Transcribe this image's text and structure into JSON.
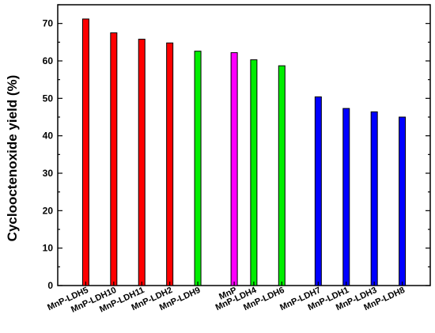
{
  "chart_data": {
    "type": "bar",
    "title": "",
    "xlabel": "",
    "ylabel": "Cyclooctenoxide yield (%)",
    "ylim": [
      0,
      75
    ],
    "yticks": [
      0,
      10,
      20,
      30,
      40,
      50,
      60,
      70
    ],
    "grid": false,
    "legend": "none",
    "categories": [
      "MnP-LDH5",
      "MnP-LDH10",
      "MnP-LDH11",
      "MnP-LDH2",
      "MnP-LDH9",
      "MnP",
      "MnP-LDH4",
      "MnP-LDH6",
      "MnP-LDH7",
      "MnP-LDH1",
      "MnP-LDH3",
      "MnP-LDH8"
    ],
    "values": [
      71.2,
      67.5,
      65.8,
      64.8,
      62.6,
      62.2,
      60.3,
      58.7,
      50.4,
      47.3,
      46.4,
      45.0
    ],
    "colors": [
      "#ff0000",
      "#ff0000",
      "#ff0000",
      "#ff0000",
      "#00ee00",
      "#ff00ff",
      "#00ee00",
      "#00ee00",
      "#0000ff",
      "#0000ff",
      "#0000ff",
      "#0000ff"
    ],
    "positions": [
      1,
      2,
      3,
      4,
      5,
      6.3,
      7,
      8,
      9.3,
      10.3,
      11.3,
      12.3
    ],
    "xlim": [
      0,
      13.3
    ]
  }
}
